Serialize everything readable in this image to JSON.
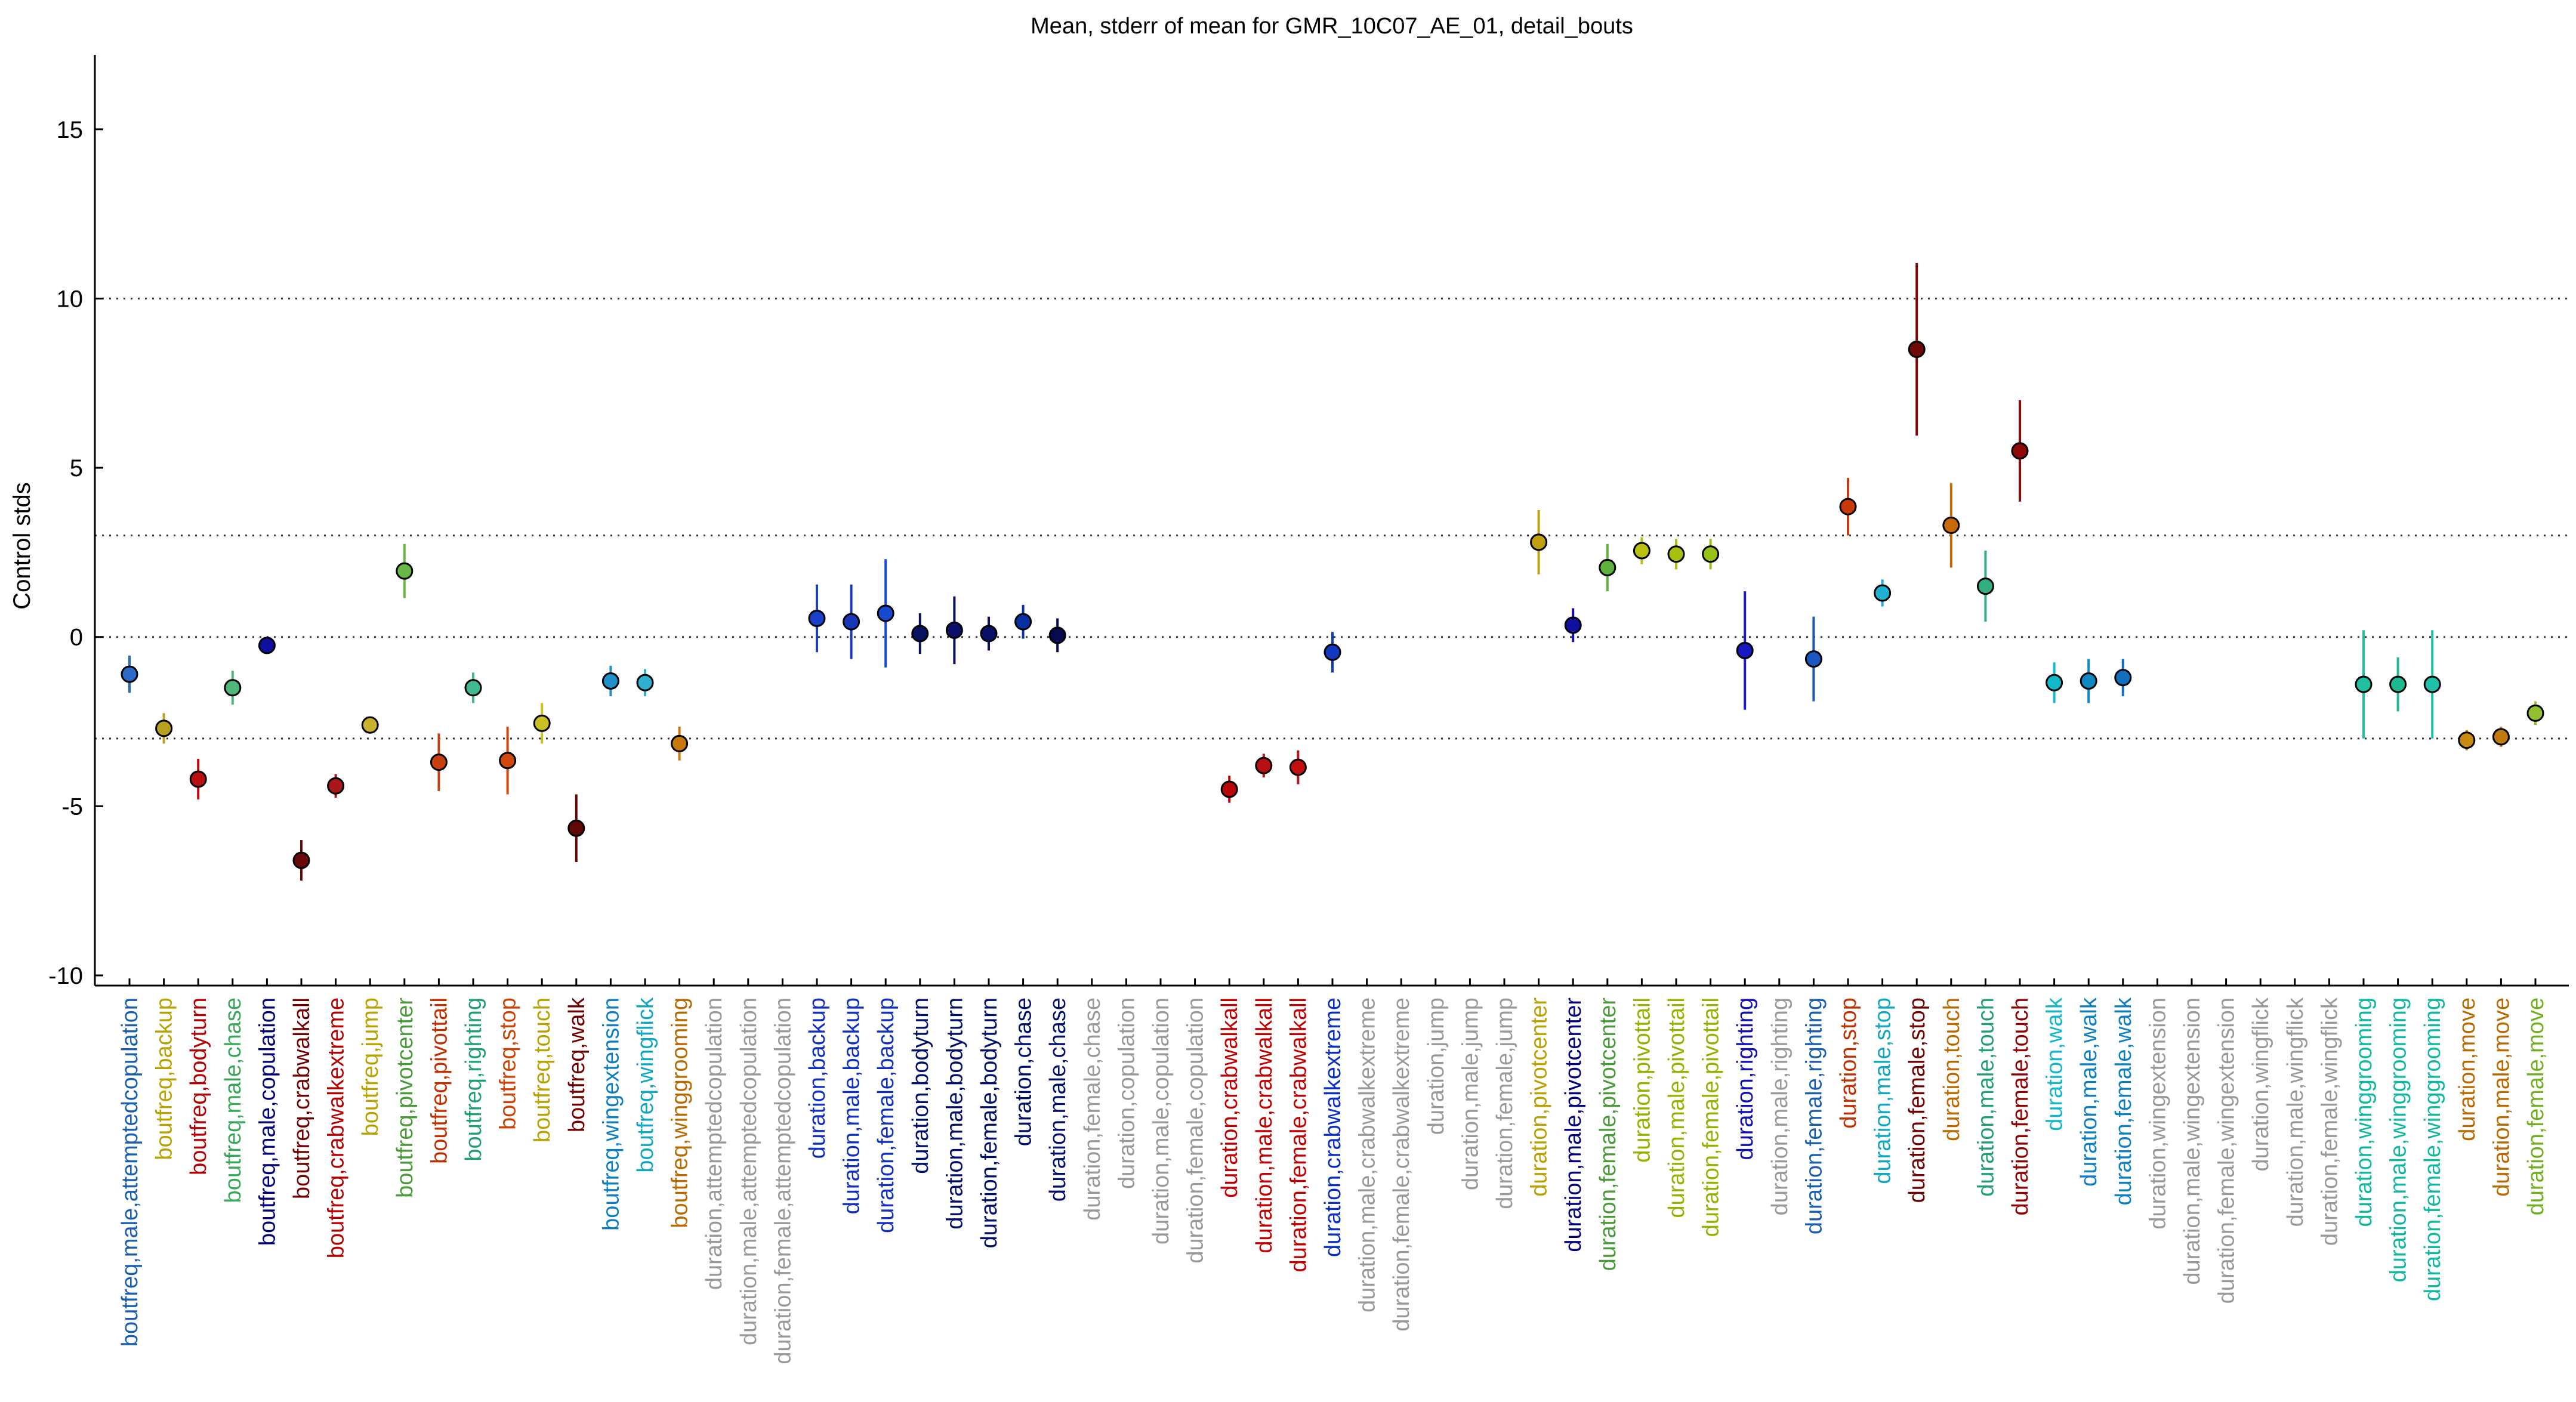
{
  "chart_data": {
    "type": "scatter",
    "title": "Mean, stderr of mean for GMR_10C07_AE_01, detail_bouts",
    "ylabel": "Control stds",
    "xlabel": "",
    "ylim": [
      -10.3,
      17.2
    ],
    "yticks": [
      -10,
      -5,
      0,
      5,
      10,
      15
    ],
    "reference_lines": [
      -3,
      0,
      3,
      10
    ],
    "grid": false,
    "categories": [
      "boutfreq,male,attemptedcopulation",
      "boutfreq,backup",
      "boutfreq,bodyturn",
      "boutfreq,male,chase",
      "boutfreq,male,copulation",
      "boutfreq,crabwalkall",
      "boutfreq,crabwalkextreme",
      "boutfreq,jump",
      "boutfreq,pivotcenter",
      "boutfreq,pivottail",
      "boutfreq,righting",
      "boutfreq,stop",
      "boutfreq,touch",
      "boutfreq,walk",
      "boutfreq,wingextension",
      "boutfreq,wingflick",
      "boutfreq,winggrooming",
      "duration,attemptedcopulation",
      "duration,male,attemptedcopulation",
      "duration,female,attemptedcopulation",
      "duration,backup",
      "duration,male,backup",
      "duration,female,backup",
      "duration,bodyturn",
      "duration,male,bodyturn",
      "duration,female,bodyturn",
      "duration,chase",
      "duration,male,chase",
      "duration,female,chase",
      "duration,copulation",
      "duration,male,copulation",
      "duration,female,copulation",
      "duration,crabwalkall",
      "duration,male,crabwalkall",
      "duration,female,crabwalkall",
      "duration,crabwalkextreme",
      "duration,male,crabwalkextreme",
      "duration,female,crabwalkextreme",
      "duration,jump",
      "duration,male,jump",
      "duration,female,jump",
      "duration,pivotcenter",
      "duration,male,pivotcenter",
      "duration,female,pivotcenter",
      "duration,pivottail",
      "duration,male,pivottail",
      "duration,female,pivottail",
      "duration,righting",
      "duration,male,righting",
      "duration,female,righting",
      "duration,stop",
      "duration,male,stop",
      "duration,female,stop",
      "duration,touch",
      "duration,male,touch",
      "duration,female,touch",
      "duration,walk",
      "duration,male,walk",
      "duration,female,walk",
      "duration,wingextension",
      "duration,male,wingextension",
      "duration,female,wingextension",
      "duration,wingflick",
      "duration,male,wingflick",
      "duration,female,wingflick",
      "duration,winggrooming",
      "duration,male,winggrooming",
      "duration,female,winggrooming",
      "duration,move",
      "duration,male,move",
      "duration,female,move"
    ],
    "label_colors": [
      "#1a5fae",
      "#b8a200",
      "#b40000",
      "#3aa85a",
      "#00007a",
      "#700000",
      "#b40000",
      "#b8a200",
      "#4a9a3a",
      "#c03000",
      "#20a070",
      "#d04000",
      "#b8a200",
      "#700000",
      "#0e7fbf",
      "#10a8c0",
      "#b86a00",
      "#999999",
      "#999999",
      "#999999",
      "#1030c0",
      "#1030c0",
      "#1030c0",
      "#00106a",
      "#00106a",
      "#00106a",
      "#00106a",
      "#00106a",
      "#999999",
      "#999999",
      "#999999",
      "#999999",
      "#c00000",
      "#c00000",
      "#c00000",
      "#0a30c0",
      "#999999",
      "#999999",
      "#999999",
      "#999999",
      "#999999",
      "#b8a200",
      "#00007a",
      "#4a9a3a",
      "#98b000",
      "#98b000",
      "#98b000",
      "#1010b0",
      "#999999",
      "#1a5fae",
      "#c03000",
      "#10a8c0",
      "#700000",
      "#b86a00",
      "#20a070",
      "#900000",
      "#10b8c8",
      "#0e7fbf",
      "#0e7fbf",
      "#999999",
      "#999999",
      "#999999",
      "#999999",
      "#999999",
      "#999999",
      "#10b8a0",
      "#10b8a0",
      "#10b8a0",
      "#b86a00",
      "#b86a00",
      "#70b020"
    ],
    "series": [
      {
        "category": "boutfreq,male,attemptedcopulation",
        "mean": -1.1,
        "sem": 0.55,
        "color": "#2a6ac8"
      },
      {
        "category": "boutfreq,backup",
        "mean": -2.7,
        "sem": 0.45,
        "color": "#b8a020"
      },
      {
        "category": "boutfreq,bodyturn",
        "mean": -4.2,
        "sem": 0.6,
        "color": "#b81010"
      },
      {
        "category": "boutfreq,male,chase",
        "mean": -1.5,
        "sem": 0.5,
        "color": "#50b878"
      },
      {
        "category": "boutfreq,male,copulation",
        "mean": -0.25,
        "sem": 0.2,
        "color": "#1010a0"
      },
      {
        "category": "boutfreq,crabwalkall",
        "mean": -6.6,
        "sem": 0.6,
        "color": "#680808"
      },
      {
        "category": "boutfreq,crabwalkextreme",
        "mean": -4.4,
        "sem": 0.35,
        "color": "#a81818"
      },
      {
        "category": "boutfreq,jump",
        "mean": -2.6,
        "sem": 0.25,
        "color": "#c8b030"
      },
      {
        "category": "boutfreq,pivotcenter",
        "mean": 1.95,
        "sem": 0.8,
        "color": "#68b848"
      },
      {
        "category": "boutfreq,pivottail",
        "mean": -3.7,
        "sem": 0.85,
        "color": "#c84010"
      },
      {
        "category": "boutfreq,righting",
        "mean": -1.5,
        "sem": 0.45,
        "color": "#40b890"
      },
      {
        "category": "boutfreq,stop",
        "mean": -3.65,
        "sem": 1.0,
        "color": "#d04a10"
      },
      {
        "category": "boutfreq,touch",
        "mean": -2.55,
        "sem": 0.6,
        "color": "#c8c020"
      },
      {
        "category": "boutfreq,walk",
        "mean": -5.65,
        "sem": 1.0,
        "color": "#600808"
      },
      {
        "category": "boutfreq,wingextension",
        "mean": -1.3,
        "sem": 0.45,
        "color": "#2090c8"
      },
      {
        "category": "boutfreq,wingflick",
        "mean": -1.35,
        "sem": 0.4,
        "color": "#30b0d0"
      },
      {
        "category": "boutfreq,winggrooming",
        "mean": -3.15,
        "sem": 0.5,
        "color": "#c87810"
      },
      {
        "category": "duration,backup",
        "mean": 0.55,
        "sem": 1.0,
        "color": "#1840c8"
      },
      {
        "category": "duration,male,backup",
        "mean": 0.45,
        "sem": 1.1,
        "color": "#1838b8"
      },
      {
        "category": "duration,female,backup",
        "mean": 0.7,
        "sem": 1.6,
        "color": "#1848d0"
      },
      {
        "category": "duration,bodyturn",
        "mean": 0.1,
        "sem": 0.6,
        "color": "#081060"
      },
      {
        "category": "duration,male,bodyturn",
        "mean": 0.2,
        "sem": 1.0,
        "color": "#08106a"
      },
      {
        "category": "duration,female,bodyturn",
        "mean": 0.1,
        "sem": 0.5,
        "color": "#081068"
      },
      {
        "category": "duration,chase",
        "mean": 0.45,
        "sem": 0.5,
        "color": "#0830a0"
      },
      {
        "category": "duration,male,chase",
        "mean": 0.05,
        "sem": 0.5,
        "color": "#080a50"
      },
      {
        "category": "duration,crabwalkall",
        "mean": -4.5,
        "sem": 0.4,
        "color": "#b80808"
      },
      {
        "category": "duration,male,crabwalkall",
        "mean": -3.8,
        "sem": 0.35,
        "color": "#b81010"
      },
      {
        "category": "duration,female,crabwalkall",
        "mean": -3.85,
        "sem": 0.5,
        "color": "#c01010"
      },
      {
        "category": "duration,crabwalkextreme",
        "mean": -0.45,
        "sem": 0.6,
        "color": "#1038c0"
      },
      {
        "category": "duration,pivotcenter",
        "mean": 2.8,
        "sem": 0.95,
        "color": "#c0a010"
      },
      {
        "category": "duration,male,pivotcenter",
        "mean": 0.35,
        "sem": 0.5,
        "color": "#1010a0"
      },
      {
        "category": "duration,female,pivotcenter",
        "mean": 2.05,
        "sem": 0.7,
        "color": "#60b040"
      },
      {
        "category": "duration,pivottail",
        "mean": 2.55,
        "sem": 0.4,
        "color": "#b8c010"
      },
      {
        "category": "duration,male,pivottail",
        "mean": 2.45,
        "sem": 0.45,
        "color": "#a8c010"
      },
      {
        "category": "duration,female,pivottail",
        "mean": 2.45,
        "sem": 0.45,
        "color": "#98c018"
      },
      {
        "category": "duration,righting",
        "mean": -0.4,
        "sem": 1.75,
        "color": "#1818c0"
      },
      {
        "category": "duration,female,righting",
        "mean": -0.65,
        "sem": 1.25,
        "color": "#1858c0"
      },
      {
        "category": "duration,stop",
        "mean": 3.85,
        "sem": 0.85,
        "color": "#c83a08"
      },
      {
        "category": "duration,male,stop",
        "mean": 1.3,
        "sem": 0.4,
        "color": "#20b0d0"
      },
      {
        "category": "duration,female,stop",
        "mean": 8.5,
        "sem": 2.55,
        "color": "#700808"
      },
      {
        "category": "duration,touch",
        "mean": 3.3,
        "sem": 1.25,
        "color": "#c86a08"
      },
      {
        "category": "duration,male,touch",
        "mean": 1.5,
        "sem": 1.05,
        "color": "#30b080"
      },
      {
        "category": "duration,female,touch",
        "mean": 5.5,
        "sem": 1.5,
        "color": "#900808"
      },
      {
        "category": "duration,walk",
        "mean": -1.35,
        "sem": 0.6,
        "color": "#10b8c8"
      },
      {
        "category": "duration,male,walk",
        "mean": -1.3,
        "sem": 0.65,
        "color": "#1088c0"
      },
      {
        "category": "duration,female,walk",
        "mean": -1.2,
        "sem": 0.55,
        "color": "#1070c0"
      },
      {
        "category": "duration,winggrooming",
        "mean": -1.4,
        "sem": 1.6,
        "color": "#20c0a0"
      },
      {
        "category": "duration,male,winggrooming",
        "mean": -1.4,
        "sem": 0.8,
        "color": "#20b890"
      },
      {
        "category": "duration,female,winggrooming",
        "mean": -1.4,
        "sem": 1.6,
        "color": "#20c0a8"
      },
      {
        "category": "duration,move",
        "mean": -3.05,
        "sem": 0.3,
        "color": "#c88a10"
      },
      {
        "category": "duration,male,move",
        "mean": -2.95,
        "sem": 0.3,
        "color": "#c07a10"
      },
      {
        "category": "duration,female,move",
        "mean": -2.25,
        "sem": 0.35,
        "color": "#90c030"
      }
    ]
  }
}
